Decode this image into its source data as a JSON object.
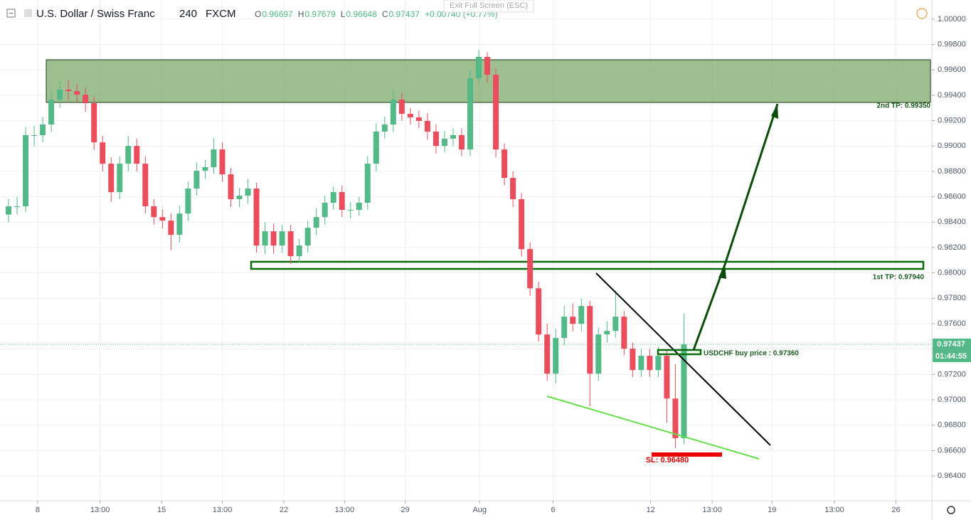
{
  "header": {
    "title": "U.S. Dollar / Swiss Franc",
    "interval": "240",
    "source": "FXCM",
    "ohlc": [
      {
        "label": "O",
        "value": "0.96697"
      },
      {
        "label": "H",
        "value": "0.97679"
      },
      {
        "label": "L",
        "value": "0.96648"
      },
      {
        "label": "C",
        "value": "0.97437"
      }
    ],
    "change": "+0.00740 (+0.77%)",
    "exit_fullscreen": "Exit Full Screen (ESC)"
  },
  "chart_data": {
    "type": "candlestick",
    "up_color": "#53b987",
    "down_color": "#eb4d5c",
    "x": [
      1,
      2,
      3,
      4,
      5,
      6,
      7,
      8,
      9,
      10,
      11,
      12,
      13,
      14,
      15,
      16,
      17,
      18,
      19,
      20,
      21,
      22,
      23,
      24,
      25,
      26,
      27,
      28,
      29,
      30,
      31,
      32,
      33,
      34,
      35,
      36,
      37,
      38,
      39,
      40,
      41,
      42,
      43,
      44,
      45,
      46,
      47,
      48,
      49,
      50,
      51,
      52,
      53,
      54,
      55,
      56,
      57,
      58,
      59,
      60,
      61,
      62,
      63,
      64,
      65,
      66,
      67,
      68,
      69,
      70,
      71,
      72,
      73,
      74,
      75,
      76,
      77,
      78,
      79,
      80
    ],
    "open": [
      0.9846,
      0.98525,
      0.98525,
      0.99086,
      0.99086,
      0.9917,
      0.99366,
      0.99445,
      0.99433,
      0.99405,
      0.99338,
      0.99029,
      0.98861,
      0.98637,
      0.98861,
      0.99001,
      0.98861,
      0.98525,
      0.9844,
      0.98412,
      0.983,
      0.98468,
      0.98665,
      0.98805,
      0.98833,
      0.98973,
      0.98777,
      0.98581,
      0.98609,
      0.98665,
      0.98216,
      0.98328,
      0.98216,
      0.98328,
      0.98132,
      0.98216,
      0.98356,
      0.9844,
      0.98553,
      0.98637,
      0.98497,
      0.98497,
      0.98553,
      0.98861,
      0.99114,
      0.9917,
      0.99366,
      0.99254,
      0.99226,
      0.99198,
      0.99114,
      0.99001,
      0.99058,
      0.99086,
      0.98973,
      0.99534,
      0.99703,
      0.99562,
      0.98973,
      0.98749,
      0.98581,
      0.98188,
      0.97879,
      0.97515,
      0.97206,
      0.97487,
      0.97655,
      0.97599,
      0.97739,
      0.97206,
      0.97515,
      0.97543,
      0.97655,
      0.97403,
      0.97234,
      0.97347,
      0.97234,
      0.97347,
      0.9701,
      0.96697
    ],
    "high": [
      0.98585,
      0.986,
      0.9915,
      0.9916,
      0.9923,
      0.9943,
      0.9951,
      0.9952,
      0.9949,
      0.9946,
      0.9939,
      0.9908,
      0.9891,
      0.9892,
      0.9908,
      0.9906,
      0.9892,
      0.9858,
      0.985,
      0.9847,
      0.9853,
      0.9872,
      0.9887,
      0.9889,
      0.9906,
      0.9903,
      0.9883,
      0.9867,
      0.9874,
      0.9871,
      0.984,
      0.9839,
      0.9838,
      0.9838,
      0.9827,
      0.9841,
      0.9851,
      0.9861,
      0.9868,
      0.9869,
      0.9856,
      0.986,
      0.9892,
      0.9918,
      0.9923,
      0.9944,
      0.9942,
      0.993,
      0.9928,
      0.9926,
      0.9917,
      0.9912,
      0.9914,
      0.9914,
      0.996,
      0.9976,
      0.9974,
      0.9961,
      0.9902,
      0.988,
      0.9863,
      0.9824,
      0.9793,
      0.976,
      0.9756,
      0.9774,
      0.9776,
      0.978,
      0.9778,
      0.9757,
      0.9762,
      0.9786,
      0.977,
      0.9745,
      0.974,
      0.974,
      0.9742,
      0.9739,
      0.9728,
      0.97679
    ],
    "low": [
      0.984,
      0.9846,
      0.9848,
      0.99,
      0.9903,
      0.9911,
      0.993,
      0.9936,
      0.9934,
      0.9927,
      0.9897,
      0.988,
      0.9856,
      0.9858,
      0.988,
      0.988,
      0.9847,
      0.9838,
      0.9835,
      0.9818,
      0.9824,
      0.9841,
      0.9861,
      0.9874,
      0.9878,
      0.9872,
      0.9852,
      0.9852,
      0.9855,
      0.9816,
      0.9815,
      0.9815,
      0.9816,
      0.9807,
      0.9808,
      0.9816,
      0.983,
      0.9838,
      0.985,
      0.9844,
      0.9843,
      0.9845,
      0.985,
      0.988,
      0.9906,
      0.9911,
      0.992,
      0.9917,
      0.9914,
      0.9905,
      0.9894,
      0.9895,
      0.99,
      0.9892,
      0.9892,
      0.9948,
      0.995,
      0.9891,
      0.9869,
      0.9852,
      0.9813,
      0.9782,
      0.9746,
      0.9715,
      0.9713,
      0.9743,
      0.9754,
      0.9754,
      0.9695,
      0.9715,
      0.9745,
      0.9749,
      0.9735,
      0.9718,
      0.9718,
      0.9718,
      0.9718,
      0.9682,
      0.9662,
      0.96648
    ],
    "close": [
      0.98525,
      0.98525,
      0.99086,
      0.99086,
      0.9917,
      0.99366,
      0.99445,
      0.99433,
      0.99405,
      0.99338,
      0.99029,
      0.98861,
      0.98637,
      0.98861,
      0.99001,
      0.98861,
      0.98525,
      0.9844,
      0.98412,
      0.983,
      0.98468,
      0.98665,
      0.98805,
      0.98833,
      0.98973,
      0.98777,
      0.98581,
      0.98609,
      0.98665,
      0.98216,
      0.98328,
      0.98216,
      0.98328,
      0.98132,
      0.98216,
      0.98356,
      0.9844,
      0.98553,
      0.98637,
      0.98497,
      0.98497,
      0.98553,
      0.98861,
      0.99114,
      0.9917,
      0.99366,
      0.99254,
      0.99226,
      0.99198,
      0.99114,
      0.99001,
      0.99058,
      0.99086,
      0.98973,
      0.99534,
      0.99703,
      0.99562,
      0.98973,
      0.98749,
      0.98581,
      0.98188,
      0.97879,
      0.97515,
      0.97206,
      0.97487,
      0.97655,
      0.97599,
      0.97739,
      0.97206,
      0.97515,
      0.97543,
      0.97655,
      0.97403,
      0.97234,
      0.97347,
      0.97234,
      0.97347,
      0.9701,
      0.96697,
      0.97437
    ],
    "xlim": [
      0,
      109
    ],
    "ylim": [
      0.96204,
      1.00151
    ],
    "xticks": [
      {
        "value": 4.4,
        "label": "8"
      },
      {
        "value": 11.7,
        "label": "13:00"
      },
      {
        "value": 18.9,
        "label": "15"
      },
      {
        "value": 26,
        "label": "13:00"
      },
      {
        "value": 33.2,
        "label": "22"
      },
      {
        "value": 40.3,
        "label": "13:00"
      },
      {
        "value": 47.4,
        "label": "29"
      },
      {
        "value": 56.1,
        "label": "Aug"
      },
      {
        "value": 64.7,
        "label": "6"
      },
      {
        "value": 76.1,
        "label": "12"
      },
      {
        "value": 83.3,
        "label": "13:00"
      },
      {
        "value": 90.3,
        "label": "19"
      },
      {
        "value": 97.6,
        "label": "13:00"
      },
      {
        "value": 104.8,
        "label": "26"
      }
    ],
    "yticks": [
      {
        "value": 0.964,
        "label": "0.96400"
      },
      {
        "value": 0.966,
        "label": "0.96600"
      },
      {
        "value": 0.968,
        "label": "0.96800"
      },
      {
        "value": 0.97,
        "label": "0.97000"
      },
      {
        "value": 0.972,
        "label": "0.97200"
      },
      {
        "value": 0.974,
        "label": "0.97400"
      },
      {
        "value": 0.976,
        "label": "0.97600"
      },
      {
        "value": 0.978,
        "label": "0.97800"
      },
      {
        "value": 0.98,
        "label": "0.98000"
      },
      {
        "value": 0.982,
        "label": "0.98200"
      },
      {
        "value": 0.984,
        "label": "0.98400"
      },
      {
        "value": 0.986,
        "label": "0.98600"
      },
      {
        "value": 0.988,
        "label": "0.98800"
      },
      {
        "value": 0.99,
        "label": "0.99000"
      },
      {
        "value": 0.992,
        "label": "0.99200"
      },
      {
        "value": 0.994,
        "label": "0.99400"
      },
      {
        "value": 0.996,
        "label": "0.99600"
      },
      {
        "value": 0.998,
        "label": "0.99800"
      },
      {
        "value": 1.0,
        "label": "1.00000"
      }
    ],
    "grid": true,
    "last_price": {
      "value": 0.97437,
      "label": "0.97437"
    },
    "countdown": "01:44:55",
    "annotations": {
      "tp2": "2nd TP: 0.99350",
      "tp1": "1st TP: 0.97940",
      "buy": "USDCHF buy price : 0.97360",
      "sl": "SL: 0.96480"
    }
  }
}
